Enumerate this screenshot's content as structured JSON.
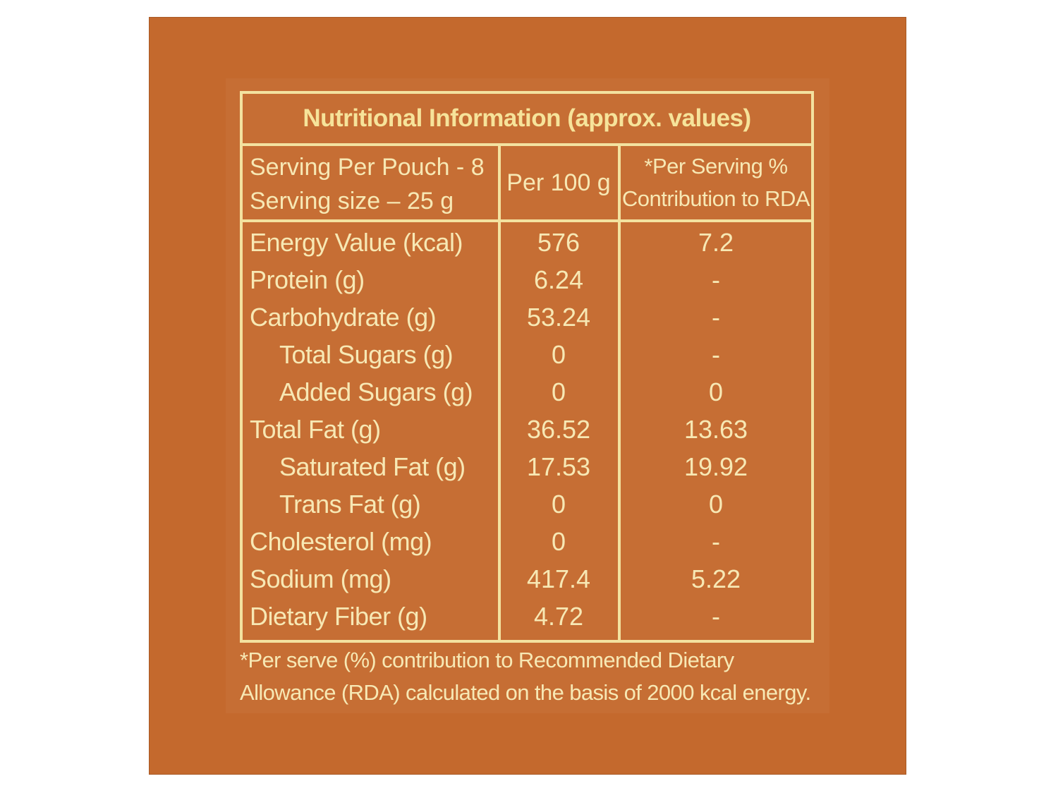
{
  "title": "Nutritional Information (approx. values)",
  "header": {
    "serving_line1": "Serving Per Pouch - 8",
    "serving_line2": "Serving size – 25 g",
    "per100": "Per 100 g",
    "rda_line1": "*Per Serving %",
    "rda_line2": "Contribution to RDA"
  },
  "rows": [
    {
      "name": "Energy Value (kcal)",
      "per100": "576",
      "rda": "7.2"
    },
    {
      "name": "Protein (g)",
      "per100": "6.24",
      "rda": "-"
    },
    {
      "name": "Carbohydrate (g)",
      "per100": "53.24",
      "rda": "-"
    },
    {
      "name": "Total Sugars (g)",
      "per100": "0",
      "rda": "-"
    },
    {
      "name": "Added Sugars (g)",
      "per100": "0",
      "rda": "0"
    },
    {
      "name": "Total Fat (g)",
      "per100": "36.52",
      "rda": "13.63"
    },
    {
      "name": "Saturated Fat (g)",
      "per100": "17.53",
      "rda": "19.92"
    },
    {
      "name": "Trans Fat (g)",
      "per100": "0",
      "rda": "0"
    },
    {
      "name": "Cholesterol (mg)",
      "per100": "0",
      "rda": "-"
    },
    {
      "name": "Sodium (mg)",
      "per100": "417.4",
      "rda": "5.22"
    },
    {
      "name": "Dietary Fiber (g)",
      "per100": "4.72",
      "rda": "-"
    }
  ],
  "footnote_line1": "*Per serve (%) contribution to Recommended Dietary",
  "footnote_line2": "Allowance (RDA) calculated on the basis of 2000 kcal energy.",
  "colors": {
    "panel": "#c4692d",
    "text": "#f7e8b4",
    "border": "#f3e2a0"
  }
}
